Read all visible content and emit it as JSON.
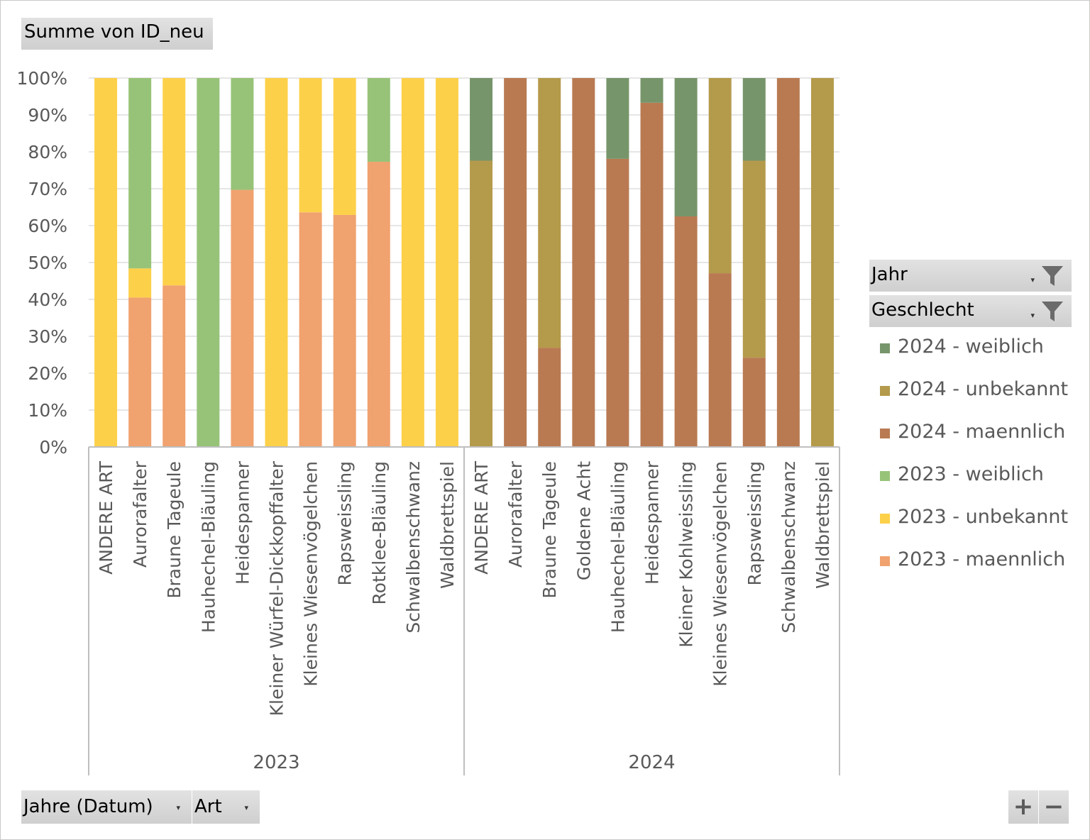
{
  "pivot": {
    "value_field": "Summe von ID_neu",
    "filters": [
      {
        "label": "Jahr",
        "icon": "filter-funnel-icon"
      },
      {
        "label": "Geschlecht",
        "icon": "filter-funnel-icon"
      }
    ],
    "axis_fields": [
      {
        "label": "Jahre (Datum)",
        "icon": "dropdown-caret-icon"
      },
      {
        "label": "Art",
        "icon": "dropdown-caret-icon"
      }
    ],
    "zoom": {
      "plus": "+",
      "minus": "−"
    }
  },
  "colors": {
    "2024 - weiblich": "#77956a",
    "2024 - unbekannt": "#b49a4b",
    "2024 - maennlich": "#b97a52",
    "2023 - weiblich": "#97c378",
    "2023 - unbekannt": "#fdd04a",
    "2023 - maennlich": "#f0a26f",
    "gridline": "#e6e6e6",
    "axis": "#bfbfbf"
  },
  "chart_data": {
    "type": "bar",
    "stacked": "percent",
    "y_ticks": [
      "0%",
      "10%",
      "20%",
      "30%",
      "40%",
      "50%",
      "60%",
      "70%",
      "80%",
      "90%",
      "100%"
    ],
    "ylim": [
      0,
      100
    ],
    "grid": true,
    "legend_position": "right",
    "legend": [
      "2024 - weiblich",
      "2024 - unbekannt",
      "2024 - maennlich",
      "2023 - weiblich",
      "2023 - unbekannt",
      "2023 - maennlich"
    ],
    "groups": [
      {
        "label": "2023",
        "categories": [
          "ANDERE ART",
          "Aurorafalter",
          "Braune Tageule",
          "Hauhechel-Bläuling",
          "Heidespanner",
          "Kleiner Würfel-Dickkopffalter",
          "Kleines Wiesenvögelchen",
          "Rapsweissling",
          "Rotklee-Bläuling",
          "Schwalbenschwanz",
          "Waldbrettspiel"
        ],
        "series": [
          {
            "name": "2023 - maennlich",
            "values": [
              0,
              40.5,
              43.8,
              0,
              69.7,
              0,
              63.6,
              62.9,
              77.3,
              0,
              0
            ]
          },
          {
            "name": "2023 - unbekannt",
            "values": [
              100,
              7.9,
              56.2,
              0,
              0,
              100,
              36.4,
              37.1,
              0,
              100,
              100
            ]
          },
          {
            "name": "2023 - weiblich",
            "values": [
              0,
              51.6,
              0,
              100,
              30.3,
              0,
              0,
              0,
              22.7,
              0,
              0
            ]
          }
        ]
      },
      {
        "label": "2024",
        "categories": [
          "ANDERE ART",
          "Aurorafalter",
          "Braune Tageule",
          "Goldene Acht",
          "Hauhechel-Bläuling",
          "Heidespanner",
          "Kleiner Kohlweissling",
          "Kleines Wiesenvögelchen",
          "Rapsweissling",
          "Schwalbenschwanz",
          "Waldbrettspiel"
        ],
        "series": [
          {
            "name": "2024 - maennlich",
            "values": [
              0,
              100,
              26.9,
              100,
              78.1,
              93.3,
              62.5,
              47.1,
              24.2,
              100,
              0
            ]
          },
          {
            "name": "2024 - unbekannt",
            "values": [
              77.6,
              0,
              73.1,
              0,
              0,
              0,
              0,
              52.9,
              53.4,
              0,
              100
            ]
          },
          {
            "name": "2024 - weiblich",
            "values": [
              22.4,
              0,
              0,
              0,
              21.9,
              6.7,
              37.5,
              0,
              22.4,
              0,
              0
            ]
          }
        ]
      }
    ]
  }
}
